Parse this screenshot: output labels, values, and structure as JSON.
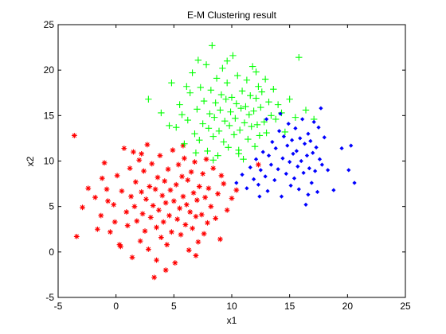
{
  "chart_data": {
    "type": "scatter",
    "title": "E-M Clustering result",
    "xlabel": "x1",
    "ylabel": "x2",
    "xlim": [
      -5,
      25
    ],
    "ylim": [
      -5,
      25
    ],
    "xticks": [
      "-5",
      "0",
      "5",
      "10",
      "15",
      "20",
      "25"
    ],
    "yticks": [
      "-5",
      "0",
      "5",
      "10",
      "15",
      "20",
      "25"
    ],
    "grid": false,
    "legend": "none",
    "series": [
      {
        "marker": "asterisk",
        "color": "#ff0000",
        "points": [
          [
            -3.6,
            12.8
          ],
          [
            -3.4,
            1.7
          ],
          [
            -2.4,
            7.0
          ],
          [
            -1.8,
            6.0
          ],
          [
            -1.6,
            2.5
          ],
          [
            -1.3,
            4.0
          ],
          [
            -1.0,
            9.8
          ],
          [
            -0.8,
            6.9
          ],
          [
            -0.5,
            2.2
          ],
          [
            -0.2,
            5.2
          ],
          [
            -0.1,
            3.3
          ],
          [
            0.1,
            8.4
          ],
          [
            0.3,
            0.8
          ],
          [
            0.5,
            6.7
          ],
          [
            0.7,
            11.4
          ],
          [
            0.9,
            4.4
          ],
          [
            1.0,
            2.9
          ],
          [
            1.2,
            9.2
          ],
          [
            1.3,
            6.1
          ],
          [
            1.4,
            -0.6
          ],
          [
            1.6,
            5.0
          ],
          [
            1.7,
            7.7
          ],
          [
            1.8,
            3.4
          ],
          [
            2.0,
            10.1
          ],
          [
            2.1,
            1.2
          ],
          [
            2.2,
            6.6
          ],
          [
            2.3,
            4.2
          ],
          [
            2.4,
            8.9
          ],
          [
            2.5,
            2.3
          ],
          [
            2.6,
            5.8
          ],
          [
            2.7,
            11.8
          ],
          [
            2.8,
            0.3
          ],
          [
            2.9,
            7.2
          ],
          [
            3.0,
            3.8
          ],
          [
            3.1,
            9.7
          ],
          [
            3.2,
            5.1
          ],
          [
            3.3,
            -2.8
          ],
          [
            3.4,
            6.9
          ],
          [
            3.5,
            2.7
          ],
          [
            3.6,
            8.2
          ],
          [
            3.7,
            4.6
          ],
          [
            3.8,
            10.6
          ],
          [
            3.9,
            1.6
          ],
          [
            4.0,
            6.2
          ],
          [
            4.1,
            3.3
          ],
          [
            4.2,
            7.8
          ],
          [
            4.3,
            5.4
          ],
          [
            4.4,
            0.8
          ],
          [
            4.5,
            9.1
          ],
          [
            4.6,
            4.0
          ],
          [
            4.7,
            6.8
          ],
          [
            4.8,
            2.2
          ],
          [
            4.9,
            11.2
          ],
          [
            5.0,
            5.6
          ],
          [
            5.1,
            -1.2
          ],
          [
            5.2,
            7.4
          ],
          [
            5.3,
            3.6
          ],
          [
            5.4,
            9.6
          ],
          [
            5.5,
            4.8
          ],
          [
            5.6,
            1.9
          ],
          [
            5.7,
            8.3
          ],
          [
            5.8,
            6.1
          ],
          [
            5.9,
            10.3
          ],
          [
            6.0,
            3.0
          ],
          [
            6.1,
            5.2
          ],
          [
            6.2,
            7.9
          ],
          [
            6.3,
            0.2
          ],
          [
            6.4,
            4.4
          ],
          [
            6.5,
            8.8
          ],
          [
            6.6,
            2.6
          ],
          [
            6.7,
            6.5
          ],
          [
            6.8,
            9.9
          ],
          [
            6.9,
            3.9
          ],
          [
            7.0,
            5.7
          ],
          [
            7.1,
            1.1
          ],
          [
            7.2,
            7.2
          ],
          [
            7.4,
            4.1
          ],
          [
            7.5,
            8.6
          ],
          [
            7.6,
            2.0
          ],
          [
            7.7,
            6.0
          ],
          [
            7.9,
            3.2
          ],
          [
            8.0,
            7.0
          ],
          [
            8.2,
            5.0
          ],
          [
            8.4,
            9.2
          ],
          [
            8.6,
            3.7
          ],
          [
            8.8,
            6.4
          ],
          [
            9.0,
            1.4
          ],
          [
            9.3,
            7.5
          ],
          [
            9.6,
            4.6
          ],
          [
            10.0,
            5.9
          ],
          [
            10.4,
            6.8
          ],
          [
            -2.9,
            4.9
          ],
          [
            -0.7,
            5.6
          ],
          [
            1.5,
            11.0
          ],
          [
            3.5,
            -0.9
          ],
          [
            5.8,
            11.7
          ],
          [
            7.8,
            10.2
          ],
          [
            9.1,
            8.4
          ],
          [
            12.3,
            9.6
          ],
          [
            0.4,
            0.6
          ],
          [
            -1.2,
            8.1
          ],
          [
            4.3,
            -2.0
          ],
          [
            6.9,
            -0.4
          ],
          [
            2.2,
            10.8
          ]
        ]
      },
      {
        "marker": "plus",
        "color": "#00ff00",
        "points": [
          [
            2.8,
            16.8
          ],
          [
            3.9,
            15.3
          ],
          [
            4.8,
            18.6
          ],
          [
            5.2,
            13.7
          ],
          [
            5.5,
            16.2
          ],
          [
            5.9,
            11.9
          ],
          [
            6.2,
            14.5
          ],
          [
            6.4,
            17.5
          ],
          [
            6.6,
            19.7
          ],
          [
            6.8,
            13.0
          ],
          [
            7.0,
            15.7
          ],
          [
            7.2,
            12.3
          ],
          [
            7.3,
            18.1
          ],
          [
            7.5,
            14.1
          ],
          [
            7.6,
            16.6
          ],
          [
            7.8,
            20.6
          ],
          [
            7.9,
            11.1
          ],
          [
            8.0,
            13.6
          ],
          [
            8.1,
            15.2
          ],
          [
            8.2,
            17.8
          ],
          [
            8.3,
            22.7
          ],
          [
            8.4,
            12.7
          ],
          [
            8.5,
            14.8
          ],
          [
            8.6,
            16.4
          ],
          [
            8.7,
            19.1
          ],
          [
            8.8,
            10.6
          ],
          [
            8.9,
            13.3
          ],
          [
            9.0,
            15.6
          ],
          [
            9.1,
            17.3
          ],
          [
            9.2,
            20.2
          ],
          [
            9.3,
            12.1
          ],
          [
            9.4,
            14.4
          ],
          [
            9.5,
            16.8
          ],
          [
            9.6,
            18.6
          ],
          [
            9.7,
            11.5
          ],
          [
            9.8,
            13.9
          ],
          [
            9.9,
            15.4
          ],
          [
            10.0,
            17.0
          ],
          [
            10.1,
            21.6
          ],
          [
            10.2,
            12.9
          ],
          [
            10.3,
            14.7
          ],
          [
            10.4,
            16.3
          ],
          [
            10.5,
            19.4
          ],
          [
            10.6,
            11.2
          ],
          [
            10.7,
            13.4
          ],
          [
            10.8,
            15.8
          ],
          [
            10.9,
            17.7
          ],
          [
            11.0,
            10.2
          ],
          [
            11.1,
            14.2
          ],
          [
            11.2,
            16.0
          ],
          [
            11.3,
            18.9
          ],
          [
            11.4,
            12.4
          ],
          [
            11.5,
            15.1
          ],
          [
            11.6,
            17.2
          ],
          [
            11.7,
            13.8
          ],
          [
            11.8,
            20.4
          ],
          [
            11.9,
            15.5
          ],
          [
            12.0,
            11.6
          ],
          [
            12.1,
            16.9
          ],
          [
            12.2,
            14.0
          ],
          [
            12.3,
            18.2
          ],
          [
            12.4,
            12.8
          ],
          [
            12.5,
            15.9
          ],
          [
            12.6,
            17.6
          ],
          [
            12.8,
            14.3
          ],
          [
            12.9,
            19.0
          ],
          [
            13.0,
            13.1
          ],
          [
            13.2,
            16.5
          ],
          [
            13.4,
            15.0
          ],
          [
            13.6,
            17.9
          ],
          [
            13.8,
            14.6
          ],
          [
            14.0,
            16.2
          ],
          [
            14.3,
            15.3
          ],
          [
            14.6,
            13.2
          ],
          [
            15.0,
            16.8
          ],
          [
            15.5,
            14.8
          ],
          [
            15.8,
            21.4
          ],
          [
            16.4,
            15.6
          ],
          [
            17.1,
            14.6
          ],
          [
            6.1,
            18.2
          ],
          [
            4.6,
            13.9
          ],
          [
            5.7,
            15.1
          ],
          [
            7.1,
            21.1
          ],
          [
            12.1,
            19.8
          ],
          [
            6.9,
            10.9
          ],
          [
            8.4,
            10.1
          ],
          [
            10.6,
            10.8
          ],
          [
            9.6,
            21.0
          ]
        ]
      },
      {
        "marker": "diamond",
        "color": "#0000ff",
        "points": [
          [
            10.4,
            7.6
          ],
          [
            10.9,
            8.5
          ],
          [
            11.3,
            7.0
          ],
          [
            11.6,
            9.3
          ],
          [
            11.9,
            8.0
          ],
          [
            12.1,
            10.2
          ],
          [
            12.3,
            7.4
          ],
          [
            12.5,
            9.0
          ],
          [
            12.7,
            11.0
          ],
          [
            12.9,
            8.3
          ],
          [
            13.1,
            6.7
          ],
          [
            13.2,
            10.6
          ],
          [
            13.4,
            9.6
          ],
          [
            13.5,
            12.1
          ],
          [
            13.7,
            7.9
          ],
          [
            13.8,
            11.4
          ],
          [
            14.0,
            9.1
          ],
          [
            14.1,
            13.3
          ],
          [
            14.3,
            6.1
          ],
          [
            14.4,
            10.3
          ],
          [
            14.5,
            12.7
          ],
          [
            14.7,
            8.6
          ],
          [
            14.8,
            11.7
          ],
          [
            14.9,
            14.1
          ],
          [
            15.0,
            9.9
          ],
          [
            15.1,
            7.3
          ],
          [
            15.2,
            12.3
          ],
          [
            15.3,
            10.8
          ],
          [
            15.4,
            8.1
          ],
          [
            15.5,
            13.6
          ],
          [
            15.6,
            11.1
          ],
          [
            15.7,
            9.4
          ],
          [
            15.8,
            6.9
          ],
          [
            15.9,
            12.5
          ],
          [
            16.0,
            10.0
          ],
          [
            16.1,
            14.6
          ],
          [
            16.2,
            8.7
          ],
          [
            16.3,
            11.9
          ],
          [
            16.4,
            5.2
          ],
          [
            16.5,
            10.6
          ],
          [
            16.6,
            13.0
          ],
          [
            16.7,
            9.2
          ],
          [
            16.8,
            12.2
          ],
          [
            16.9,
            7.6
          ],
          [
            17.0,
            10.9
          ],
          [
            17.1,
            14.3
          ],
          [
            17.2,
            8.9
          ],
          [
            17.3,
            11.5
          ],
          [
            17.4,
            6.6
          ],
          [
            17.5,
            13.7
          ],
          [
            17.6,
            10.2
          ],
          [
            17.7,
            15.8
          ],
          [
            17.8,
            9.6
          ],
          [
            18.0,
            12.6
          ],
          [
            18.3,
            9.0
          ],
          [
            18.8,
            6.8
          ],
          [
            19.5,
            11.4
          ],
          [
            20.1,
            9.0
          ],
          [
            20.6,
            7.6
          ],
          [
            20.3,
            11.7
          ],
          [
            13.0,
            14.6
          ],
          [
            14.2,
            15.2
          ],
          [
            12.4,
            6.1
          ],
          [
            16.6,
            6.3
          ]
        ]
      }
    ]
  }
}
